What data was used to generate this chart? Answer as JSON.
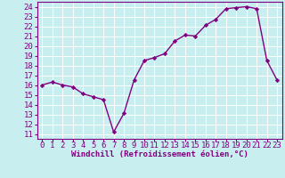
{
  "x": [
    0,
    1,
    2,
    3,
    4,
    5,
    6,
    7,
    8,
    9,
    10,
    11,
    12,
    13,
    14,
    15,
    16,
    17,
    18,
    19,
    20,
    21,
    22,
    23
  ],
  "y": [
    16.0,
    16.3,
    16.0,
    15.8,
    15.1,
    14.8,
    14.5,
    11.2,
    13.1,
    16.5,
    18.5,
    18.8,
    19.2,
    20.5,
    21.1,
    21.0,
    22.1,
    22.7,
    23.8,
    23.9,
    24.0,
    23.8,
    18.5,
    16.5
  ],
  "line_color": "#800080",
  "marker": "D",
  "marker_size": 2.2,
  "xlabel": "Windchill (Refroidissement éolien,°C)",
  "xlabel_fontsize": 6.5,
  "ylabel_ticks": [
    11,
    12,
    13,
    14,
    15,
    16,
    17,
    18,
    19,
    20,
    21,
    22,
    23,
    24
  ],
  "xlim": [
    -0.5,
    23.5
  ],
  "ylim": [
    10.5,
    24.5
  ],
  "background_color": "#c8eef0",
  "grid_color": "#ffffff",
  "tick_label_fontsize": 6.5,
  "line_width": 1.0,
  "title_color": "#800080"
}
